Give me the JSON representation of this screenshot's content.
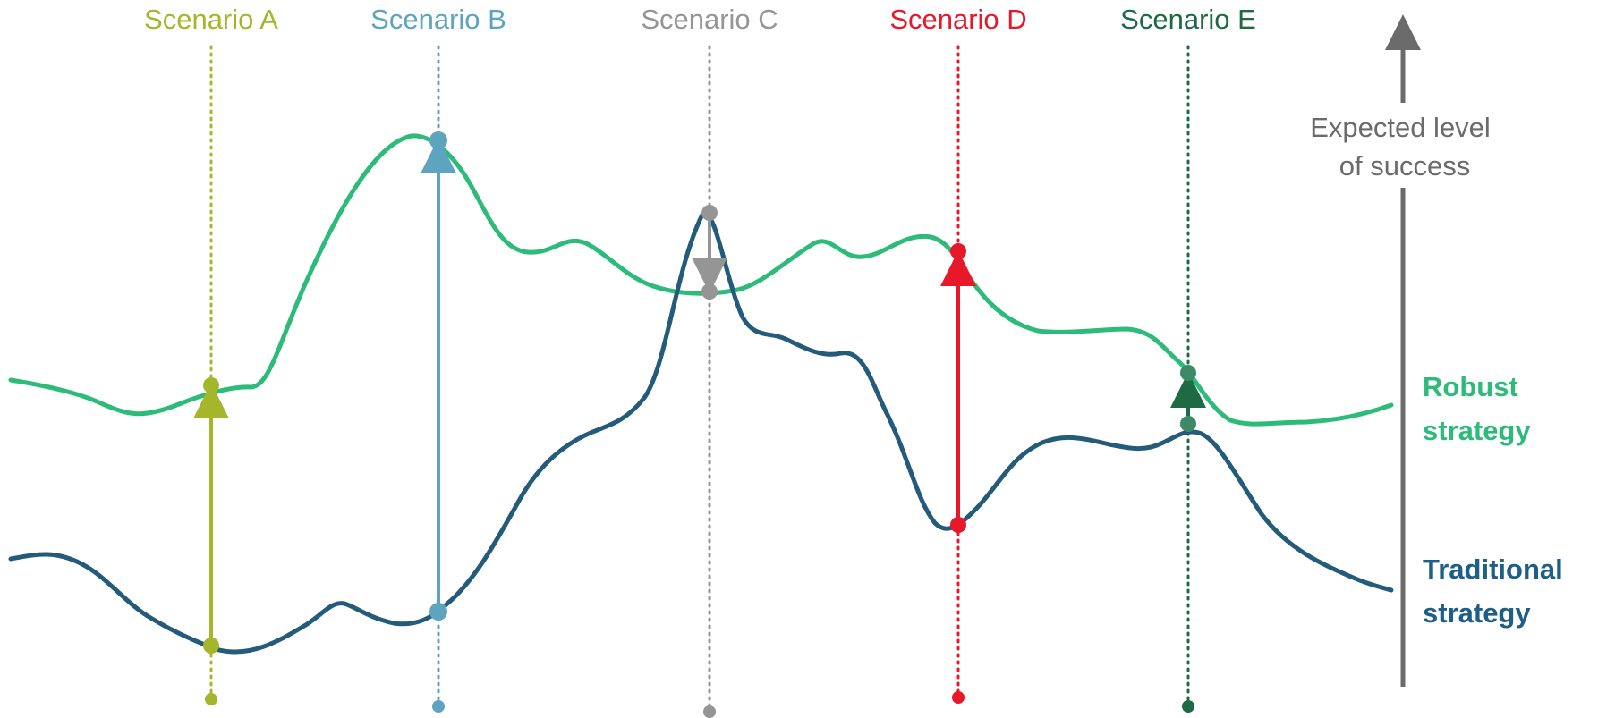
{
  "colors": {
    "robust": "#2dbb7a",
    "traditional": "#245a7a",
    "axis": "#6b6b6b"
  },
  "scenarios": [
    {
      "id": "a",
      "label": "Scenario A",
      "color": "#a5b62a",
      "effect": "improve"
    },
    {
      "id": "b",
      "label": "Scenario B",
      "color": "#5fa4bf",
      "effect": "improve"
    },
    {
      "id": "c",
      "label": "Scenario C",
      "color": "#959595",
      "effect": "decline"
    },
    {
      "id": "d",
      "label": "Scenario D",
      "color": "#e8182b",
      "effect": "improve"
    },
    {
      "id": "e",
      "label": "Scenario E",
      "color": "#1d6a45",
      "effect": "improve"
    }
  ],
  "axis": {
    "label_line1": "Expected level",
    "label_line2": "of success"
  },
  "strategies": {
    "robust": {
      "line1": "Robust",
      "line2": "strategy"
    },
    "traditional": {
      "line1": "Traditional",
      "line2": "strategy"
    }
  }
}
